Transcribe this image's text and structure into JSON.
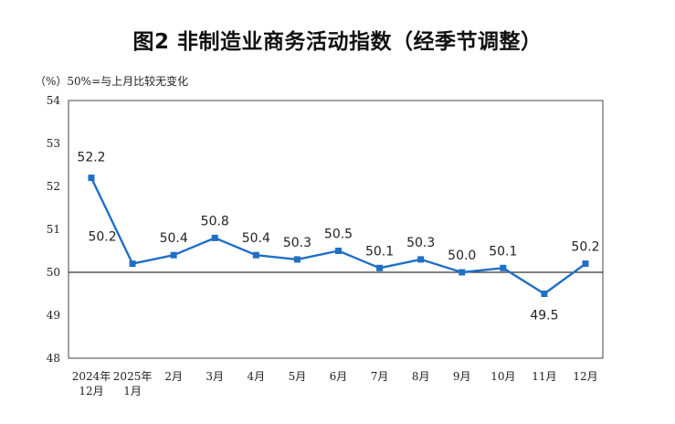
{
  "title": "图2  非制造业商务活动指数（经季节调整）",
  "unit_note": "（%）50%=与上月比较无变化",
  "colors": {
    "series": "#1f6fc5",
    "frame": "#444444",
    "baseline": "#333333",
    "text": "#222222"
  },
  "chart_data": {
    "type": "line",
    "title": "图2  非制造业商务活动指数（经季节调整）",
    "ylabel": "%",
    "ylim": [
      48,
      54
    ],
    "yticks": [
      "54",
      "53",
      "52",
      "51",
      "50",
      "49",
      "48"
    ],
    "baseline": 50,
    "categories": [
      [
        "2024年",
        "12月"
      ],
      [
        "2025年",
        "1月"
      ],
      [
        "2月"
      ],
      [
        "3月"
      ],
      [
        "4月"
      ],
      [
        "5月"
      ],
      [
        "6月"
      ],
      [
        "7月"
      ],
      [
        "8月"
      ],
      [
        "9月"
      ],
      [
        "10月"
      ],
      [
        "11月"
      ],
      [
        "12月"
      ]
    ],
    "values": [
      52.2,
      50.2,
      50.4,
      50.8,
      50.4,
      50.3,
      50.5,
      50.1,
      50.3,
      50.0,
      50.1,
      49.5,
      50.2
    ],
    "data_labels": [
      "52.2",
      "50.2",
      "50.4",
      "50.8",
      "50.4",
      "50.3",
      "50.5",
      "50.1",
      "50.3",
      "50.0",
      "50.1",
      "49.5",
      "50.2"
    ],
    "label_positions": [
      "above",
      "above-left",
      "above",
      "above",
      "above",
      "above",
      "above",
      "above",
      "above",
      "above",
      "above",
      "below",
      "above"
    ]
  }
}
